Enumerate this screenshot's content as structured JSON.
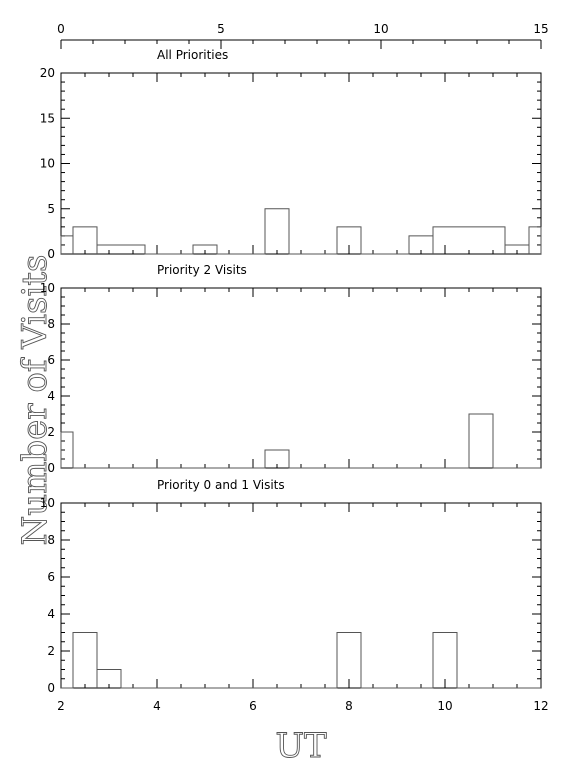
{
  "chart_data": {
    "type": "histogram",
    "ylabel": "Number of Visits",
    "xlabel": "UT",
    "top_axis": {
      "range": [
        0,
        15
      ],
      "ticks": [
        0,
        5,
        10,
        15
      ],
      "minor": 1
    },
    "bottom_axis": {
      "range": [
        2,
        12
      ],
      "ticks": [
        2,
        4,
        6,
        8,
        10,
        12
      ],
      "minor": 0.5
    },
    "panels": [
      {
        "title": "All Priorities",
        "ylim": [
          0,
          20
        ],
        "yticks": [
          0,
          5,
          10,
          15,
          20
        ],
        "yminor": 1,
        "bins": [
          {
            "x0": 2.0,
            "x1": 2.25,
            "value": 2
          },
          {
            "x0": 2.25,
            "x1": 2.75,
            "value": 3
          },
          {
            "x0": 2.75,
            "x1": 3.75,
            "value": 1
          },
          {
            "x0": 3.75,
            "x1": 4.75,
            "value": 0
          },
          {
            "x0": 4.75,
            "x1": 5.25,
            "value": 1
          },
          {
            "x0": 5.25,
            "x1": 6.25,
            "value": 0
          },
          {
            "x0": 6.25,
            "x1": 6.75,
            "value": 5
          },
          {
            "x0": 6.75,
            "x1": 7.75,
            "value": 0
          },
          {
            "x0": 7.75,
            "x1": 8.25,
            "value": 3
          },
          {
            "x0": 8.25,
            "x1": 9.25,
            "value": 0
          },
          {
            "x0": 9.25,
            "x1": 9.75,
            "value": 2
          },
          {
            "x0": 9.75,
            "x1": 11.25,
            "value": 3
          },
          {
            "x0": 11.25,
            "x1": 11.75,
            "value": 1
          },
          {
            "x0": 11.75,
            "x1": 12.0,
            "value": 3
          }
        ]
      },
      {
        "title": "Priority 2 Visits",
        "ylim": [
          0,
          10
        ],
        "yticks": [
          0,
          2,
          4,
          6,
          8,
          10
        ],
        "yminor": 0.5,
        "bins": [
          {
            "x0": 2.0,
            "x1": 2.25,
            "value": 2
          },
          {
            "x0": 2.25,
            "x1": 6.25,
            "value": 0
          },
          {
            "x0": 6.25,
            "x1": 6.75,
            "value": 1
          },
          {
            "x0": 6.75,
            "x1": 10.5,
            "value": 0
          },
          {
            "x0": 10.5,
            "x1": 11.0,
            "value": 3
          },
          {
            "x0": 11.0,
            "x1": 12.0,
            "value": 0
          }
        ]
      },
      {
        "title": "Priority 0 and 1 Visits",
        "ylim": [
          0,
          10
        ],
        "yticks": [
          0,
          2,
          4,
          6,
          8,
          10
        ],
        "yminor": 0.5,
        "bins": [
          {
            "x0": 2.0,
            "x1": 2.25,
            "value": 0
          },
          {
            "x0": 2.25,
            "x1": 2.75,
            "value": 3
          },
          {
            "x0": 2.75,
            "x1": 3.25,
            "value": 1
          },
          {
            "x0": 3.25,
            "x1": 7.75,
            "value": 0
          },
          {
            "x0": 7.75,
            "x1": 8.25,
            "value": 3
          },
          {
            "x0": 8.25,
            "x1": 9.75,
            "value": 0
          },
          {
            "x0": 9.75,
            "x1": 10.25,
            "value": 3
          },
          {
            "x0": 10.25,
            "x1": 12.0,
            "value": 0
          }
        ]
      }
    ]
  }
}
